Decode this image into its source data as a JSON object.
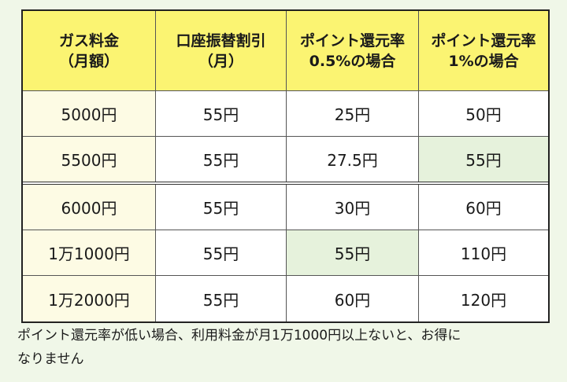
{
  "table": {
    "headers": [
      [
        "ガス料金",
        "（月額）"
      ],
      [
        "口座振替割引",
        "（月）"
      ],
      [
        "ポイント還元率",
        "0.5%の場合"
      ],
      [
        "ポイント還元率",
        "1%の場合"
      ]
    ],
    "rows": [
      [
        "5000円",
        "55円",
        "25円",
        "50円"
      ],
      [
        "5500円",
        "55円",
        "27.5円",
        "55円"
      ],
      [
        "6000円",
        "55円",
        "30円",
        "60円"
      ],
      [
        "1万1000円",
        "55円",
        "55円",
        "110円"
      ],
      [
        "1万2000円",
        "55円",
        "60円",
        "120円"
      ]
    ],
    "colors": {
      "header_bg": "#fbf472",
      "first_col_bg": "#fdfbe4",
      "highlight_bg": "#e6f2dc",
      "page_bg": "#f0f7e8"
    }
  },
  "note": {
    "line1": "ポイント還元率が低い場合、利用料金が月1万1000円以上ないと、お得に",
    "line2": "なりません"
  }
}
